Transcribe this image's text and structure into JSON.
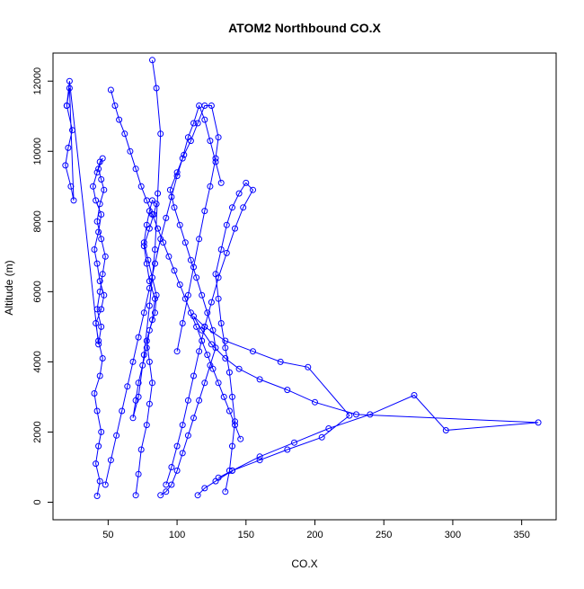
{
  "chart_data": {
    "type": "line",
    "title": "ATOM2 Northbound CO.X",
    "xlabel": "CO.X",
    "ylabel": "Altitude (m)",
    "xlim": [
      10,
      375
    ],
    "ylim": [
      -500,
      12800
    ],
    "x_ticks": [
      50,
      100,
      150,
      200,
      250,
      300,
      350
    ],
    "y_ticks": [
      0,
      2000,
      4000,
      6000,
      8000,
      10000,
      12000
    ],
    "grid": false,
    "series_color": "#0000ff",
    "series": [
      {
        "x": [
          42,
          44,
          41,
          43,
          45,
          42,
          40,
          44,
          46,
          43,
          41,
          45,
          47,
          44,
          42,
          40,
          43,
          45,
          41,
          39,
          42,
          44,
          46,
          43,
          45,
          47,
          44,
          42,
          45,
          48,
          46,
          44,
          42,
          45,
          43,
          22,
          20,
          24,
          21,
          19,
          23,
          25,
          22,
          20
        ],
        "y": [
          180,
          600,
          1100,
          1600,
          2000,
          2600,
          3100,
          3600,
          4100,
          4600,
          5100,
          5500,
          5900,
          6300,
          6800,
          7200,
          7700,
          8200,
          8600,
          9000,
          9400,
          9700,
          9800,
          9500,
          9200,
          8900,
          8500,
          8000,
          7500,
          7000,
          6500,
          6000,
          5500,
          5000,
          4500,
          12000,
          11300,
          10600,
          10100,
          9600,
          9000,
          8600,
          11800,
          11300
        ]
      },
      {
        "x": [
          70,
          72,
          74,
          78,
          80,
          82,
          80,
          78,
          82,
          84,
          80,
          78,
          76,
          80,
          83,
          85,
          82,
          80,
          78,
          76,
          79,
          82,
          85,
          84,
          80,
          78,
          75,
          72,
          70,
          68,
          72,
          76,
          80,
          84,
          86,
          88,
          85,
          82
        ],
        "y": [
          200,
          800,
          1500,
          2200,
          2800,
          3400,
          4000,
          4600,
          5200,
          5800,
          6300,
          6800,
          7300,
          7800,
          8200,
          8500,
          8600,
          8300,
          7900,
          7400,
          6900,
          6400,
          5900,
          5400,
          4900,
          4400,
          3900,
          3400,
          2900,
          2400,
          3000,
          4200,
          5600,
          7200,
          8800,
          10500,
          11800,
          12600
        ]
      },
      {
        "x": [
          88,
          92,
          96,
          100,
          104,
          108,
          112,
          116,
          120,
          124,
          128,
          126,
          122,
          118,
          114,
          110,
          106,
          102,
          98,
          95,
          100,
          105,
          110,
          115,
          120,
          125,
          130,
          128,
          124,
          120,
          116,
          112,
          108,
          104,
          100
        ],
        "y": [
          200,
          300,
          500,
          900,
          1400,
          1900,
          2400,
          2900,
          3400,
          3900,
          4400,
          4900,
          5400,
          5900,
          6400,
          6900,
          7400,
          7900,
          8400,
          8900,
          9400,
          9900,
          10300,
          10800,
          11300,
          11300,
          10400,
          9800,
          9000,
          8300,
          7500,
          6700,
          5900,
          5100,
          4300
        ]
      },
      {
        "x": [
          115,
          120,
          128,
          140,
          160,
          185,
          210,
          240,
          272,
          295,
          362,
          230,
          200,
          180,
          160,
          145,
          135,
          125,
          118,
          112,
          120,
          135,
          155,
          175,
          195,
          225,
          205,
          180,
          160,
          140,
          130
        ],
        "y": [
          200,
          400,
          600,
          900,
          1300,
          1700,
          2100,
          2500,
          3050,
          2050,
          2270,
          2500,
          2850,
          3200,
          3500,
          3800,
          4100,
          4500,
          4900,
          5300,
          5000,
          4600,
          4300,
          4000,
          3850,
          2470,
          1850,
          1500,
          1200,
          900,
          700
        ]
      },
      {
        "x": [
          135,
          138,
          140,
          142,
          140,
          138,
          135,
          132,
          130,
          128,
          132,
          136,
          140,
          145,
          150,
          155,
          148,
          142,
          136,
          130,
          125,
          120,
          116,
          112,
          108,
          104,
          100,
          96,
          92
        ],
        "y": [
          300,
          900,
          1600,
          2300,
          3000,
          3700,
          4400,
          5100,
          5800,
          6500,
          7200,
          7900,
          8400,
          8800,
          9100,
          8900,
          8400,
          7800,
          7100,
          6400,
          5700,
          5000,
          4300,
          3600,
          2900,
          2200,
          1600,
          1000,
          500
        ]
      },
      {
        "x": [
          52,
          55,
          58,
          62,
          66,
          70,
          74,
          78,
          82,
          86,
          90,
          94,
          98,
          102,
          106,
          110,
          114,
          118,
          122,
          126,
          130,
          134,
          138,
          142,
          146
        ],
        "y": [
          11750,
          11300,
          10900,
          10500,
          10000,
          9500,
          9000,
          8600,
          8200,
          7800,
          7400,
          7000,
          6600,
          6200,
          5800,
          5400,
          5000,
          4600,
          4200,
          3800,
          3400,
          3000,
          2600,
          2200,
          1800
        ]
      },
      {
        "x": [
          48,
          52,
          56,
          60,
          64,
          68,
          72,
          76,
          80,
          84,
          88,
          92,
          96,
          100,
          104,
          108,
          112,
          116,
          120,
          124,
          128,
          132
        ],
        "y": [
          500,
          1200,
          1900,
          2600,
          3300,
          4000,
          4700,
          5400,
          6100,
          6800,
          7500,
          8100,
          8700,
          9300,
          9800,
          10400,
          10800,
          11300,
          10900,
          10300,
          9700,
          9100
        ]
      }
    ]
  }
}
